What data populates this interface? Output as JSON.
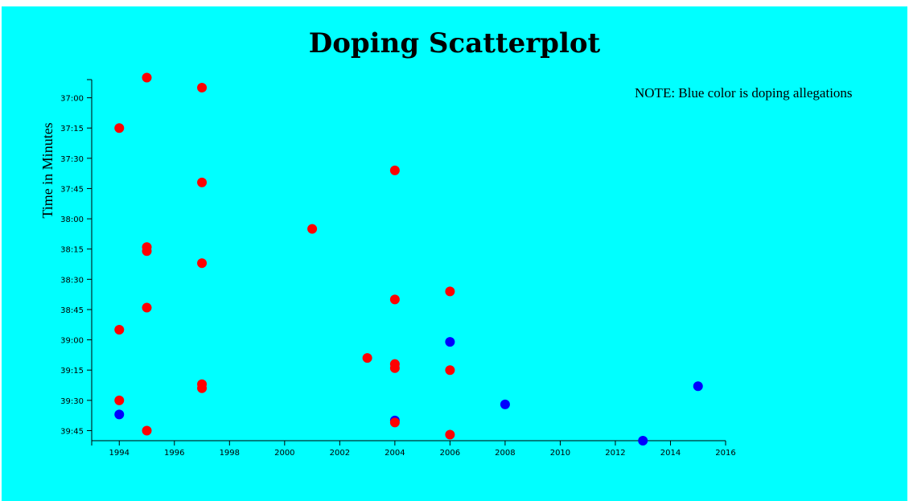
{
  "chart_data": {
    "type": "scatter",
    "title": "Doping Scatterplot",
    "xlabel": "",
    "ylabel": "Time in Minutes",
    "note": "NOTE: Blue color is doping allegations",
    "xlim": [
      1993,
      2016
    ],
    "ylim": [
      "36:51",
      "39:50"
    ],
    "x_ticks": [
      "1994",
      "1996",
      "1998",
      "2000",
      "2002",
      "2004",
      "2006",
      "2008",
      "2010",
      "2012",
      "2014",
      "2016"
    ],
    "y_ticks": [
      "37:00",
      "37:15",
      "37:30",
      "37:45",
      "38:00",
      "38:15",
      "38:30",
      "38:45",
      "39:00",
      "39:15",
      "39:30",
      "39:45"
    ],
    "colors": {
      "no_allegation": "#ff0000",
      "doping_allegation": "#0000ff",
      "background": "#00ffff"
    },
    "points": [
      {
        "x": 1995,
        "y": "36:50",
        "doping": false
      },
      {
        "x": 1997,
        "y": "36:55",
        "doping": false
      },
      {
        "x": 1994,
        "y": "37:15",
        "doping": false
      },
      {
        "x": 2004,
        "y": "37:36",
        "doping": false
      },
      {
        "x": 1997,
        "y": "37:42",
        "doping": false
      },
      {
        "x": 2001,
        "y": "38:05",
        "doping": false
      },
      {
        "x": 1995,
        "y": "38:14",
        "doping": false
      },
      {
        "x": 1995,
        "y": "38:16",
        "doping": false
      },
      {
        "x": 1997,
        "y": "38:22",
        "doping": false
      },
      {
        "x": 2006,
        "y": "38:36",
        "doping": false
      },
      {
        "x": 2004,
        "y": "38:40",
        "doping": false
      },
      {
        "x": 1995,
        "y": "38:44",
        "doping": false
      },
      {
        "x": 1994,
        "y": "38:55",
        "doping": false
      },
      {
        "x": 2006,
        "y": "39:01",
        "doping": true
      },
      {
        "x": 2003,
        "y": "39:09",
        "doping": false
      },
      {
        "x": 2004,
        "y": "39:12",
        "doping": false
      },
      {
        "x": 2004,
        "y": "39:14",
        "doping": false
      },
      {
        "x": 2006,
        "y": "39:15",
        "doping": false
      },
      {
        "x": 2015,
        "y": "39:23",
        "doping": true
      },
      {
        "x": 1997,
        "y": "39:22",
        "doping": false
      },
      {
        "x": 1997,
        "y": "39:24",
        "doping": false
      },
      {
        "x": 1994,
        "y": "39:30",
        "doping": false
      },
      {
        "x": 2008,
        "y": "39:32",
        "doping": true
      },
      {
        "x": 1994,
        "y": "39:37",
        "doping": true
      },
      {
        "x": 2004,
        "y": "39:40",
        "doping": true
      },
      {
        "x": 2004,
        "y": "39:41",
        "doping": false
      },
      {
        "x": 1995,
        "y": "39:45",
        "doping": false
      },
      {
        "x": 2006,
        "y": "39:47",
        "doping": false
      },
      {
        "x": 2013,
        "y": "39:50",
        "doping": true
      }
    ]
  }
}
